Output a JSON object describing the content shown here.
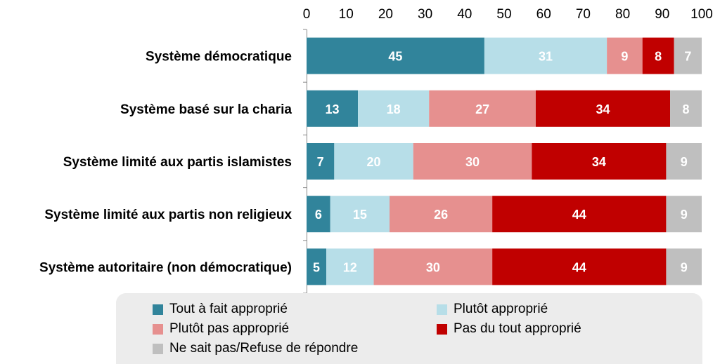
{
  "chart_data": {
    "type": "bar",
    "orientation": "horizontal",
    "stacked": true,
    "xlim": [
      0,
      100
    ],
    "xticks": [
      "0",
      "10",
      "20",
      "30",
      "40",
      "50",
      "60",
      "70",
      "80",
      "90",
      "100"
    ],
    "x_axis_position": "top",
    "grid": false,
    "legend_position": "bottom",
    "categories": [
      "Système démocratique",
      "Système basé sur la charia",
      "Système limité aux partis islamistes",
      "Système limité aux partis non religieux",
      "Système autoritaire (non démocratique)"
    ],
    "series": [
      {
        "name": "Tout à fait approprié",
        "color": "#31849b",
        "values": [
          45,
          13,
          7,
          6,
          5
        ]
      },
      {
        "name": "Plutôt approprié",
        "color": "#b7dee8",
        "values": [
          31,
          18,
          20,
          15,
          12
        ]
      },
      {
        "name": "Plutôt pas approprié",
        "color": "#e6908f",
        "values": [
          9,
          27,
          30,
          26,
          30
        ]
      },
      {
        "name": "Pas du tout approprié",
        "color": "#c00000",
        "values": [
          8,
          34,
          34,
          44,
          44
        ]
      },
      {
        "name": "Ne sait pas/Refuse de répondre",
        "color": "#bfbfbf",
        "values": [
          7,
          8,
          9,
          9,
          9
        ]
      }
    ]
  }
}
